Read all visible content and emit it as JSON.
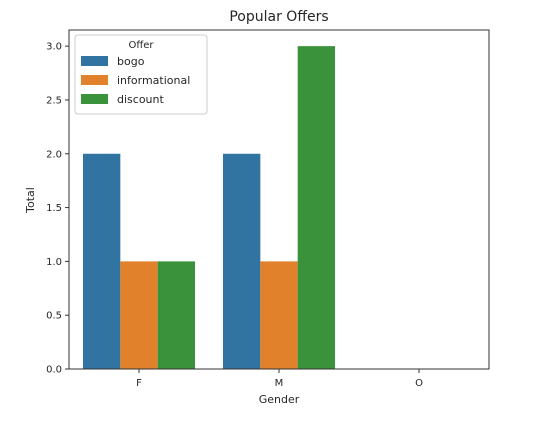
{
  "chart_data": {
    "type": "bar",
    "title": "Popular Offers",
    "xlabel": "Gender",
    "ylabel": "Total",
    "categories": [
      "F",
      "M",
      "O"
    ],
    "series": [
      {
        "name": "bogo",
        "color": "#3274a1",
        "values": [
          2,
          2,
          0
        ]
      },
      {
        "name": "informational",
        "color": "#e1812c",
        "values": [
          1,
          1,
          0
        ]
      },
      {
        "name": "discount",
        "color": "#3a923a",
        "values": [
          1,
          3,
          0
        ]
      }
    ],
    "ylim": [
      0,
      3.15
    ],
    "yticks": [
      "0.0",
      "0.5",
      "1.0",
      "1.5",
      "2.0",
      "2.5",
      "3.0"
    ],
    "legend_title": "Offer",
    "legend_position": "top-left",
    "grid": false
  }
}
